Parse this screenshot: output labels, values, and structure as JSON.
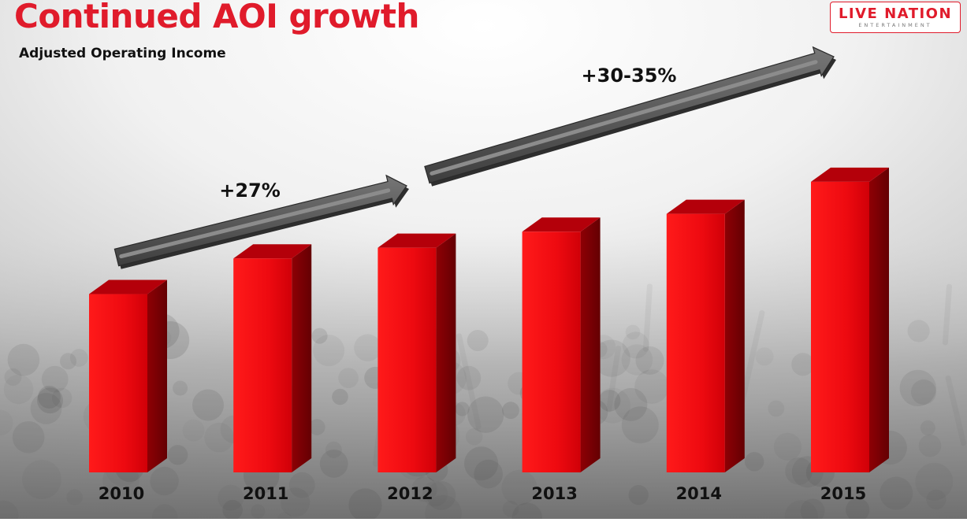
{
  "header": {
    "title": "Continued AOI growth",
    "subtitle": "Adjusted Operating Income"
  },
  "logo": {
    "main": "LIVE NATION",
    "sub": "ENTERTAINMENT"
  },
  "chart_data": {
    "type": "bar",
    "title": "",
    "xlabel": "",
    "ylabel": "",
    "categories": [
      "2010",
      "2011",
      "2012",
      "2013",
      "2014",
      "2015"
    ],
    "values": [
      100,
      120,
      126,
      135,
      145,
      163
    ],
    "ylim": [
      0,
      170
    ],
    "grid": false,
    "legend": "none",
    "style": "3d",
    "bar_color": "#e3000f",
    "arrow_color": "#5a5a5a",
    "annotations": [
      {
        "text": "+27%",
        "from": "2010",
        "to": "2012"
      },
      {
        "text": "+30-35%",
        "from": "2012",
        "to": "2015"
      }
    ]
  }
}
